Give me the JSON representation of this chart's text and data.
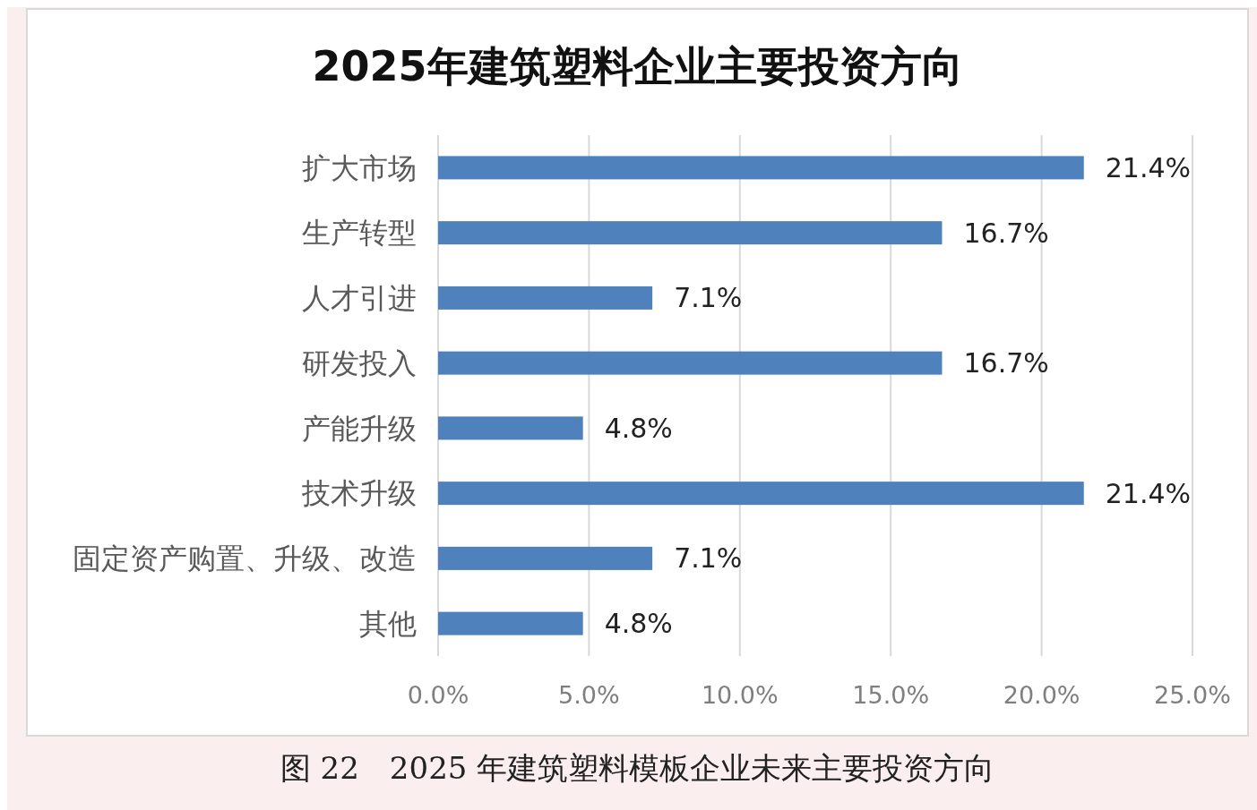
{
  "chart_data": {
    "type": "bar",
    "orientation": "horizontal",
    "title": "2025年建筑塑料企业主要投资方向",
    "categories": [
      "扩大市场",
      "生产转型",
      "人才引进",
      "研发投入",
      "产能升级",
      "技术升级",
      "固定资产购置、升级、改造",
      "其他"
    ],
    "values": [
      21.4,
      16.7,
      7.1,
      16.7,
      4.8,
      21.4,
      7.1,
      4.8
    ],
    "value_labels": [
      "21.4%",
      "16.7%",
      "7.1%",
      "16.7%",
      "4.8%",
      "21.4%",
      "7.1%",
      "4.8%"
    ],
    "color": "#4f81bd",
    "xlim": [
      0,
      25
    ],
    "xticks": [
      {
        "value": 0,
        "label": "0.0%"
      },
      {
        "value": 5,
        "label": "5.0%"
      },
      {
        "value": 10,
        "label": "10.0%"
      },
      {
        "value": 15,
        "label": "15.0%"
      },
      {
        "value": 20,
        "label": "20.0%"
      },
      {
        "value": 25,
        "label": "25.0%"
      }
    ],
    "grid": "x",
    "annotations": [
      "图 22　2025 年建筑塑料模板企业未来主要投资方向"
    ]
  }
}
